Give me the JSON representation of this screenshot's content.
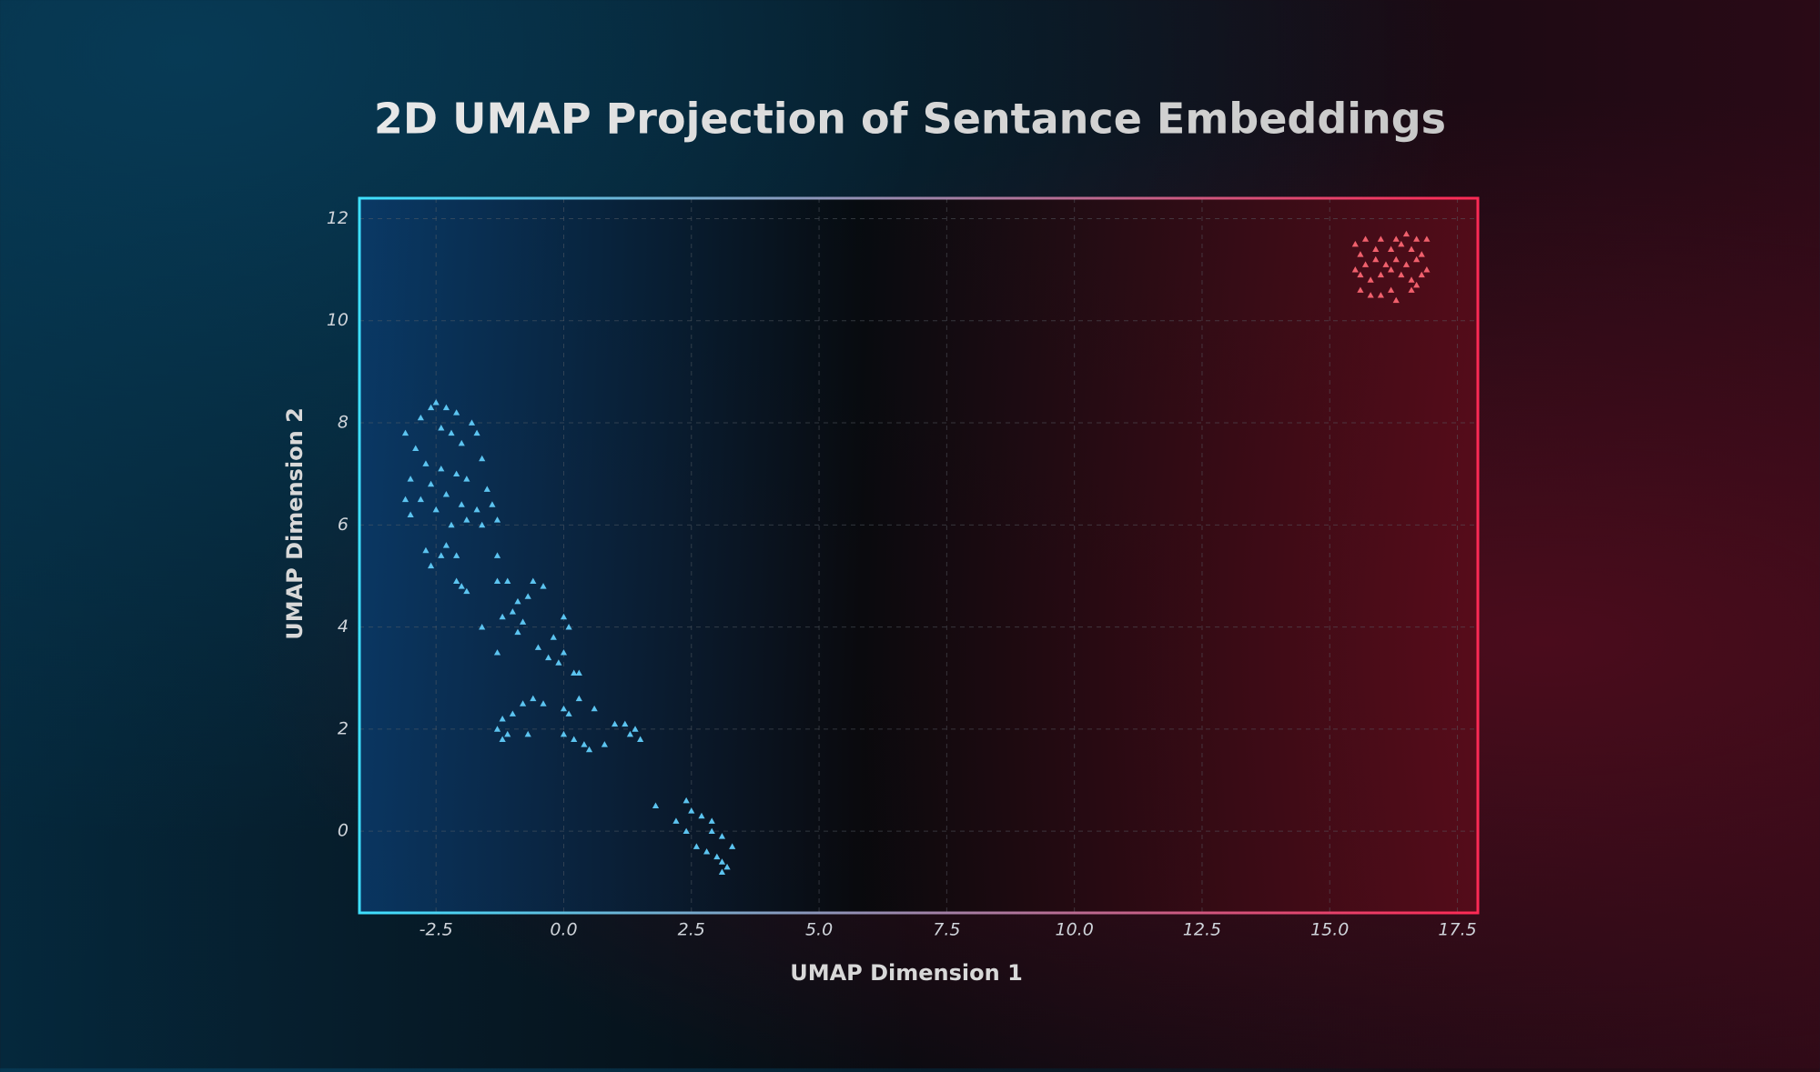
{
  "chart_data": {
    "type": "scatter",
    "title": "2D UMAP Projection of Sentance Embeddings",
    "x_label": "UMAP Dimension 1",
    "y_label": "UMAP Dimension 2",
    "xlim": [
      -4.0,
      17.9
    ],
    "ylim": [
      -1.6,
      12.4
    ],
    "xticks": [
      -2.5,
      {
        "value": 0,
        "label": "0.0"
      },
      2.5,
      {
        "value": 5,
        "label": "5.0"
      },
      7.5,
      {
        "value": 10,
        "label": "10.0"
      },
      12.5,
      {
        "value": 15,
        "label": "15.0"
      },
      17.5
    ],
    "yticks": [
      0,
      2,
      4,
      6,
      8,
      10,
      12
    ],
    "grid": true,
    "series": [
      {
        "color": "#5cc4f0",
        "x": [
          -2.5,
          -2.6,
          -2.3,
          -2.1,
          -2.8,
          -3.1,
          -1.8,
          -1.7,
          -2.4,
          -2.2,
          -2.0,
          -2.9,
          -1.6,
          -2.7,
          -2.4,
          -2.1,
          -1.9,
          -3.0,
          -2.6,
          -1.5,
          -2.8,
          -2.3,
          -3.1,
          -2.5,
          -2.0,
          -1.7,
          -1.4,
          -3.0,
          -2.2,
          -1.9,
          -1.6,
          -1.3,
          -2.7,
          -2.4,
          -2.1,
          -2.6,
          -2.3,
          -2.1,
          -2.0,
          -1.9,
          -1.3,
          -1.3,
          -1.1,
          -0.6,
          -0.4,
          -0.7,
          -0.9,
          -1.0,
          -1.2,
          -0.8,
          -1.6,
          -0.9,
          -1.3,
          -0.5,
          -0.3,
          0.0,
          0.1,
          -0.2,
          0.0,
          -0.1,
          0.2,
          0.3,
          0.3,
          -0.6,
          -0.4,
          -0.8,
          -1.0,
          -1.2,
          -1.3,
          -1.1,
          -1.2,
          -0.7,
          0.0,
          0.1,
          0.6,
          0.0,
          0.2,
          0.4,
          0.5,
          0.8,
          1.0,
          1.2,
          1.4,
          1.3,
          1.5,
          1.8,
          2.4,
          2.5,
          2.2,
          2.7,
          2.9,
          2.4,
          2.9,
          3.1,
          2.6,
          2.8,
          3.3,
          3.0,
          3.1,
          3.2,
          3.1
        ],
        "values": [
          8.4,
          8.3,
          8.3,
          8.2,
          8.1,
          7.8,
          8.0,
          7.8,
          7.9,
          7.8,
          7.6,
          7.5,
          7.3,
          7.2,
          7.1,
          7.0,
          6.9,
          6.9,
          6.8,
          6.7,
          6.5,
          6.6,
          6.5,
          6.3,
          6.4,
          6.3,
          6.4,
          6.2,
          6.0,
          6.1,
          6.0,
          6.1,
          5.5,
          5.4,
          5.4,
          5.2,
          5.6,
          4.9,
          4.8,
          4.7,
          5.4,
          4.9,
          4.9,
          4.9,
          4.8,
          4.6,
          4.5,
          4.3,
          4.2,
          4.1,
          4.0,
          3.9,
          3.5,
          3.6,
          3.4,
          4.2,
          4.0,
          3.8,
          3.5,
          3.3,
          3.1,
          3.1,
          2.6,
          2.6,
          2.5,
          2.5,
          2.3,
          2.2,
          2.0,
          1.9,
          1.8,
          1.9,
          2.4,
          2.3,
          2.4,
          1.9,
          1.8,
          1.7,
          1.6,
          1.7,
          2.1,
          2.1,
          2.0,
          1.9,
          1.8,
          0.5,
          0.6,
          0.4,
          0.2,
          0.3,
          0.2,
          0.0,
          0.0,
          -0.1,
          -0.3,
          -0.4,
          -0.3,
          -0.5,
          -0.6,
          -0.7,
          -0.8
        ]
      },
      {
        "color": "#f0606c",
        "x": [
          15.5,
          15.7,
          16.0,
          16.3,
          16.5,
          16.7,
          16.9,
          15.6,
          15.9,
          16.2,
          16.4,
          16.6,
          16.8,
          15.5,
          15.7,
          15.9,
          16.1,
          16.3,
          16.5,
          16.7,
          16.9,
          15.6,
          15.8,
          16.0,
          16.2,
          16.4,
          16.6,
          16.8,
          15.6,
          15.8,
          16.0,
          16.2,
          16.3,
          16.6,
          16.7
        ],
        "values": [
          11.5,
          11.6,
          11.6,
          11.6,
          11.7,
          11.6,
          11.6,
          11.3,
          11.4,
          11.4,
          11.5,
          11.4,
          11.3,
          11.0,
          11.1,
          11.2,
          11.1,
          11.2,
          11.1,
          11.2,
          11.0,
          10.9,
          10.8,
          10.9,
          11.0,
          10.9,
          10.8,
          10.9,
          10.6,
          10.5,
          10.5,
          10.6,
          10.4,
          10.6,
          10.7
        ]
      }
    ]
  }
}
